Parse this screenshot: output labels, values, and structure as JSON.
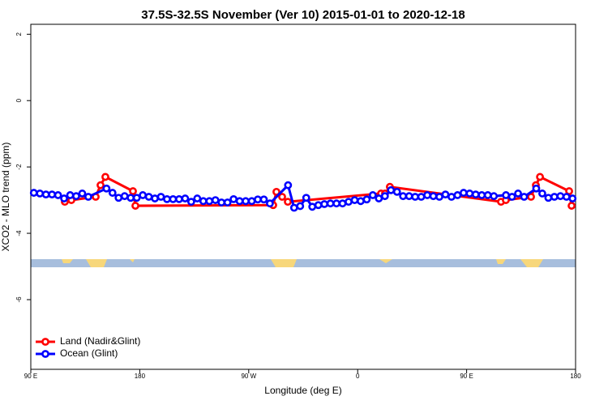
{
  "chart_data": {
    "type": "line",
    "title": "37.5S-32.5S November (Ver 10)   2015-01-01 to 2020-12-18",
    "x_label": "Longitude (deg E)",
    "y_label": "XCO2 - MLO trend (ppm)",
    "xlim": [
      90,
      540
    ],
    "xticks": [
      {
        "value": 90,
        "label": "90 E"
      },
      {
        "value": 180,
        "label": "180"
      },
      {
        "value": 270,
        "label": "90 W"
      },
      {
        "value": 360,
        "label": "0"
      },
      {
        "value": 450,
        "label": "90 E"
      },
      {
        "value": 540,
        "label": "180"
      }
    ],
    "ylim": [
      -8.1,
      2.3
    ],
    "yticks": [
      -6,
      -4,
      -2,
      0,
      2
    ],
    "legend": "bottom-left",
    "series": [
      {
        "name": "Land (Nadir&Glint)",
        "color": "#ff0000",
        "x": [
          118.1,
          123.5,
          143.6,
          147.6,
          151.6,
          174.4,
          176.4,
          290.2,
          292.9,
          297.6,
          302.3,
          379.3,
          382.6,
          386.6,
          478.4,
          482.4,
          503.2,
          507.2,
          510.6,
          534.7,
          536.7
        ],
        "values": [
          -3.05,
          -3.0,
          -2.9,
          -2.55,
          -2.3,
          -2.73,
          -3.17,
          -3.15,
          -2.75,
          -2.9,
          -3.05,
          -2.8,
          -2.8,
          -2.6,
          -3.05,
          -3.0,
          -2.9,
          -2.55,
          -2.3,
          -2.73,
          -3.17
        ]
      },
      {
        "name": "Ocean (Glint)",
        "color": "#0000ff",
        "x": [
          92.5,
          97.5,
          102.5,
          107.5,
          112.5,
          117.5,
          122.5,
          127.5,
          132.5,
          137.5,
          152.5,
          157.5,
          162.5,
          167.5,
          172.5,
          177.5,
          182.5,
          187.5,
          192.5,
          197.5,
          202.5,
          207.5,
          212.5,
          217.5,
          222.5,
          227.5,
          232.5,
          237.5,
          242.5,
          247.5,
          252.5,
          257.5,
          262.5,
          267.5,
          272.5,
          277.5,
          282.5,
          287.5,
          302.5,
          307.5,
          312.5,
          317.5,
          322.5,
          327.5,
          332.5,
          337.5,
          342.5,
          347.5,
          352.5,
          357.5,
          362.5,
          367.5,
          372.5,
          377.5,
          382.5,
          387.5,
          392.5,
          397.5,
          402.5,
          407.5,
          412.5,
          417.5,
          422.5,
          427.5,
          432.5,
          437.5,
          442.5,
          447.5,
          452.5,
          457.5,
          462.5,
          467.5,
          472.5,
          482.5,
          487.5,
          492.5,
          497.5,
          507.5,
          512.5,
          517.5,
          522.5,
          527.5,
          532.5,
          537.5
        ],
        "values": [
          -2.78,
          -2.8,
          -2.83,
          -2.83,
          -2.85,
          -2.95,
          -2.85,
          -2.88,
          -2.8,
          -2.9,
          -2.65,
          -2.78,
          -2.93,
          -2.88,
          -2.93,
          -2.93,
          -2.85,
          -2.9,
          -2.95,
          -2.9,
          -2.97,
          -2.97,
          -2.97,
          -2.95,
          -3.05,
          -2.95,
          -3.03,
          -3.03,
          -3.0,
          -3.07,
          -3.07,
          -2.97,
          -3.03,
          -3.03,
          -3.03,
          -2.98,
          -2.98,
          -3.1,
          -2.55,
          -3.23,
          -3.18,
          -2.93,
          -3.2,
          -3.15,
          -3.12,
          -3.1,
          -3.1,
          -3.1,
          -3.05,
          -3.0,
          -3.03,
          -2.98,
          -2.85,
          -2.95,
          -2.88,
          -2.7,
          -2.75,
          -2.88,
          -2.88,
          -2.9,
          -2.9,
          -2.85,
          -2.88,
          -2.9,
          -2.83,
          -2.9,
          -2.85,
          -2.78,
          -2.8,
          -2.83,
          -2.85,
          -2.85,
          -2.88,
          -2.85,
          -2.9,
          -2.8,
          -2.9,
          -2.65,
          -2.8,
          -2.93,
          -2.9,
          -2.88,
          -2.9,
          -2.95
        ]
      }
    ]
  }
}
